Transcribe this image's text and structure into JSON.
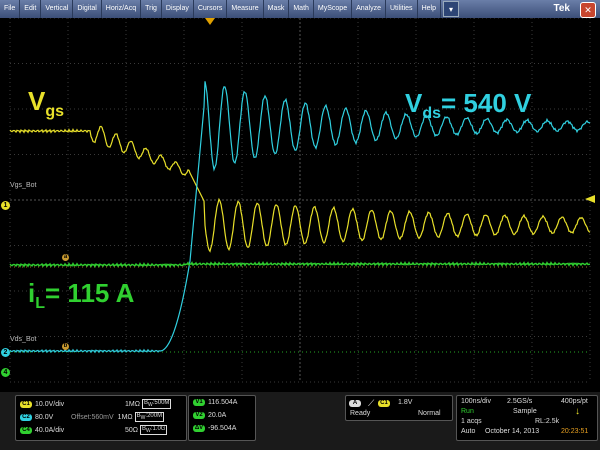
{
  "menu": {
    "items": [
      "File",
      "Edit",
      "Vertical",
      "Digital",
      "Horiz/Acq",
      "Trig",
      "Display",
      "Cursors",
      "Measure",
      "Mask",
      "Math",
      "MyScope",
      "Analyze",
      "Utilities",
      "Help"
    ],
    "brand": "Tek"
  },
  "screen": {
    "vgs_label_main": "V",
    "vgs_label_sub": "gs",
    "vds_label_main": "V",
    "vds_label_sub": "ds",
    "vds_value": "= 540 V",
    "il_label_main": "i",
    "il_label_sub": "L",
    "il_value": "= 115 A",
    "ch1_name": "Vgs_Bot",
    "ch2_name": "Vds_Bot",
    "marker1": "1",
    "marker2": "2",
    "marker4": "4",
    "ref_a": "a",
    "ref_b": "b",
    "colors": {
      "ch1": "#e8e02a",
      "ch2": "#30d0e0",
      "ch4": "#30d030",
      "ref": "#c89a30"
    }
  },
  "channels": [
    {
      "id": "C1",
      "scale": "10.0V/div",
      "impedance": "1MΩ",
      "bw": "500M"
    },
    {
      "id": "C2",
      "scale": "80.0V",
      "offset": "Offset:560mV",
      "impedance": "1MΩ",
      "bw": "200M"
    },
    {
      "id": "C4",
      "scale": "40.0A/div",
      "impedance": "50Ω",
      "bw": "1.0G"
    }
  ],
  "math": [
    {
      "id": "V1",
      "value": "116.504A"
    },
    {
      "id": "V2",
      "value": "20.0A"
    },
    {
      "id": "ΔV",
      "value": "-96.504A"
    }
  ],
  "trigger": {
    "source": "C1",
    "level": "1.8V",
    "state": "Ready",
    "mode": "Normal"
  },
  "acquisition": {
    "timebase": "100ns/div",
    "sample_rate": "2.5GS/s",
    "pts": "400ps/pt",
    "status": "Run",
    "mode": "Sample",
    "acqs": "1 acqs",
    "record": "RL:2.5k",
    "auto": "Auto",
    "date": "October 14, 2013",
    "time": "20:23:51"
  }
}
